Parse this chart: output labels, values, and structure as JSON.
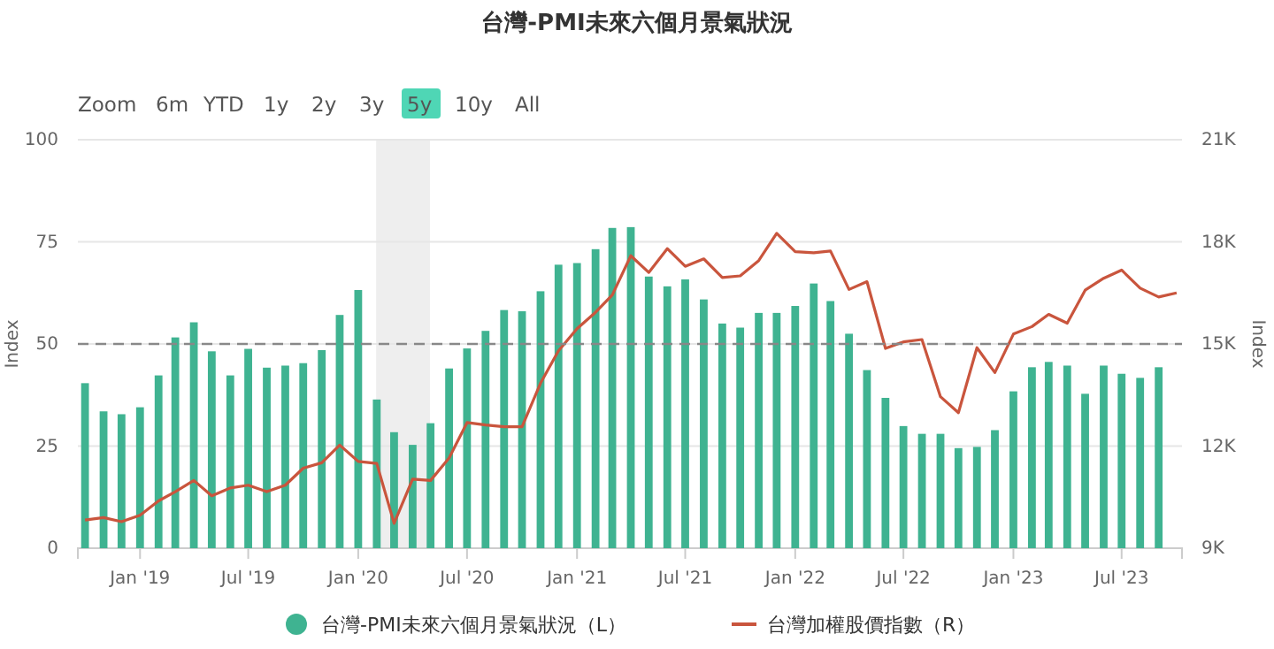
{
  "chart_data": {
    "type": "bar",
    "title": "台灣-PMI未來六個月景氣狀況",
    "ylabel": "Index",
    "y2label": "Index",
    "annotations": [
      "Zoom",
      "6m",
      "YTD",
      "1y",
      "2y",
      "3y",
      "5y",
      "10y",
      "All"
    ],
    "x": [
      "2018-10",
      "2018-11",
      "2018-12",
      "2019-01",
      "2019-02",
      "2019-03",
      "2019-04",
      "2019-05",
      "2019-06",
      "2019-07",
      "2019-08",
      "2019-09",
      "2019-10",
      "2019-11",
      "2019-12",
      "2020-01",
      "2020-02",
      "2020-03",
      "2020-04",
      "2020-05",
      "2020-06",
      "2020-07",
      "2020-08",
      "2020-09",
      "2020-10",
      "2020-11",
      "2020-12",
      "2021-01",
      "2021-02",
      "2021-03",
      "2021-04",
      "2021-05",
      "2021-06",
      "2021-07",
      "2021-08",
      "2021-09",
      "2021-10",
      "2021-11",
      "2021-12",
      "2022-01",
      "2022-02",
      "2022-03",
      "2022-04",
      "2022-05",
      "2022-06",
      "2022-07",
      "2022-08",
      "2022-09",
      "2022-10",
      "2022-11",
      "2022-12",
      "2023-01",
      "2023-02",
      "2023-03",
      "2023-04",
      "2023-05",
      "2023-06",
      "2023-07",
      "2023-08",
      "2023-09",
      "2023-10"
    ],
    "series": [
      {
        "name": "台灣-PMI未來六個月景氣狀況（L）",
        "color": "#3fb391",
        "values": [
          40.4,
          33.5,
          32.8,
          34.5,
          42.3,
          51.6,
          55.3,
          48.2,
          42.3,
          48.8,
          44.2,
          44.7,
          45.3,
          48.5,
          57.1,
          63.2,
          36.4,
          28.4,
          25.3,
          30.6,
          44.0,
          48.9,
          53.2,
          58.3,
          58.0,
          62.9,
          69.4,
          69.8,
          73.2,
          78.4,
          78.6,
          66.5,
          64.1,
          65.8,
          60.9,
          55.0,
          54.0,
          57.6,
          57.6,
          59.3,
          64.8,
          60.5,
          52.5,
          43.6,
          36.8,
          29.9,
          28.0,
          28.0,
          24.5,
          24.8,
          28.9,
          38.4,
          44.3,
          45.6,
          44.7,
          37.8,
          44.7,
          42.7,
          41.7,
          44.3,
          null
        ]
      },
      {
        "name": "台灣加權股價指數（R）",
        "type": "line",
        "axis": "y2",
        "color": "#c9553d",
        "values": [
          9830,
          9900,
          9780,
          9970,
          10390,
          10660,
          10990,
          10540,
          10770,
          10850,
          10660,
          10850,
          11350,
          11510,
          12030,
          11550,
          11490,
          9730,
          11030,
          10990,
          11650,
          12690,
          12620,
          12570,
          12570,
          13850,
          14800,
          15450,
          15930,
          16440,
          17590,
          17100,
          17800,
          17280,
          17500,
          16950,
          17000,
          17450,
          18250,
          17710,
          17680,
          17730,
          16600,
          16830,
          14870,
          15060,
          15130,
          13450,
          12980,
          14890,
          14160,
          15290,
          15510,
          15870,
          15610,
          16580,
          16930,
          17170,
          16640,
          16380,
          16500
        ]
      }
    ],
    "xlim": [
      "2018-09-19",
      "2023-10-10"
    ],
    "xticks": [
      {
        "value": "2019-01",
        "label": "Jan '19"
      },
      {
        "value": "2019-07",
        "label": "Jul '19"
      },
      {
        "value": "2020-01",
        "label": "Jan '20"
      },
      {
        "value": "2020-07",
        "label": "Jul '20"
      },
      {
        "value": "2021-01",
        "label": "Jan '21"
      },
      {
        "value": "2021-07",
        "label": "Jul '21"
      },
      {
        "value": "2022-01",
        "label": "Jan '22"
      },
      {
        "value": "2022-07",
        "label": "Jul '22"
      },
      {
        "value": "2023-01",
        "label": "Jan '23"
      },
      {
        "value": "2023-07",
        "label": "Jul '23"
      }
    ],
    "ylim": [
      0,
      100
    ],
    "yticks": [
      0,
      25,
      50,
      75,
      100
    ],
    "y2lim": [
      9000,
      21000
    ],
    "y2ticks": [
      {
        "value": 9000,
        "label": "9K"
      },
      {
        "value": 12000,
        "label": "12K"
      },
      {
        "value": 15000,
        "label": "15K"
      },
      {
        "value": 18000,
        "label": "18K"
      },
      {
        "value": 21000,
        "label": "21K"
      }
    ],
    "ref_lines": [
      {
        "axis": "y",
        "value": 50,
        "label": null,
        "color": "#888888",
        "line_style": "dashed"
      }
    ],
    "bands": [
      {
        "axis": "x",
        "from": "2020-01-31",
        "to": "2020-04-30",
        "label": null,
        "color": "#eeeeee"
      }
    ],
    "grid": "y",
    "legend": "bottom",
    "marker": "none",
    "line_style": "solid"
  }
}
